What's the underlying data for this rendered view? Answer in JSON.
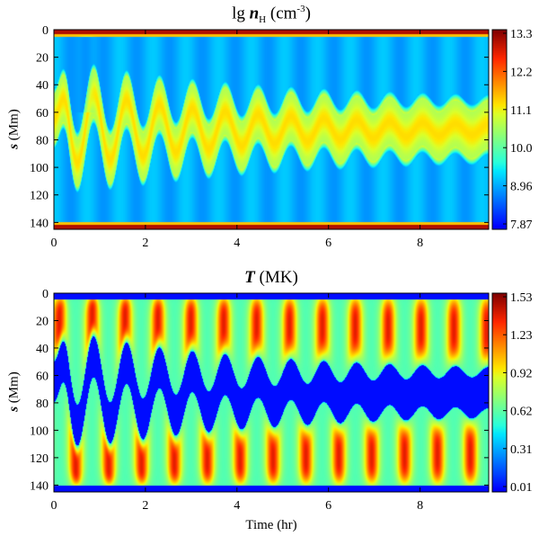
{
  "chart_data": [
    {
      "type": "heatmap",
      "title": {
        "base": "lg ",
        "var": "n",
        "sub": "H",
        "unit": " (cm",
        "sup": "-3",
        "close": ")"
      },
      "xlabel": "",
      "ylabel": {
        "var": "s",
        "unit": " (Mm)"
      },
      "xlim": [
        0,
        9.5
      ],
      "ylim": [
        0,
        145
      ],
      "y_inverted": true,
      "x_ticks": [
        "0",
        "2",
        "4",
        "6",
        "8"
      ],
      "x_tick_values": [
        0,
        2,
        4,
        6,
        8
      ],
      "y_ticks": [
        "0",
        "20",
        "40",
        "60",
        "80",
        "100",
        "120",
        "140"
      ],
      "y_tick_values": [
        0,
        20,
        40,
        60,
        80,
        100,
        120,
        140
      ],
      "colorbar": {
        "ticks": [
          "13.3",
          "12.2",
          "11.1",
          "10.0",
          "8.96",
          "7.87"
        ],
        "range": [
          7.87,
          13.3
        ]
      },
      "field": {
        "kind": "density",
        "slosh_period_hr": 0.72,
        "slosh_amplitude_Mm_initial": 30,
        "slosh_damping_time_hr": 4.5,
        "slab_center_Mm": 72.5,
        "slab_width_Mm": 34
      }
    },
    {
      "type": "heatmap",
      "title": {
        "var": "T",
        "unit": " (MK)"
      },
      "xlabel": "Time (hr)",
      "ylabel": {
        "var": "s",
        "unit": " (Mm)"
      },
      "xlim": [
        0,
        9.5
      ],
      "ylim": [
        0,
        145
      ],
      "y_inverted": true,
      "x_ticks": [
        "0",
        "2",
        "4",
        "6",
        "8"
      ],
      "x_tick_values": [
        0,
        2,
        4,
        6,
        8
      ],
      "y_ticks": [
        "0",
        "20",
        "40",
        "60",
        "80",
        "100",
        "120",
        "140"
      ],
      "y_tick_values": [
        0,
        20,
        40,
        60,
        80,
        100,
        120,
        140
      ],
      "colorbar": {
        "ticks": [
          "1.53",
          "1.23",
          "0.92",
          "0.62",
          "0.31",
          "0.01"
        ],
        "range": [
          0.01,
          1.53
        ]
      },
      "field": {
        "kind": "temperature",
        "slosh_period_hr": 0.72,
        "slosh_amplitude_Mm_initial": 30,
        "slosh_damping_time_hr": 4.5,
        "slab_center_Mm": 72.5,
        "slab_width_Mm": 34
      }
    }
  ]
}
